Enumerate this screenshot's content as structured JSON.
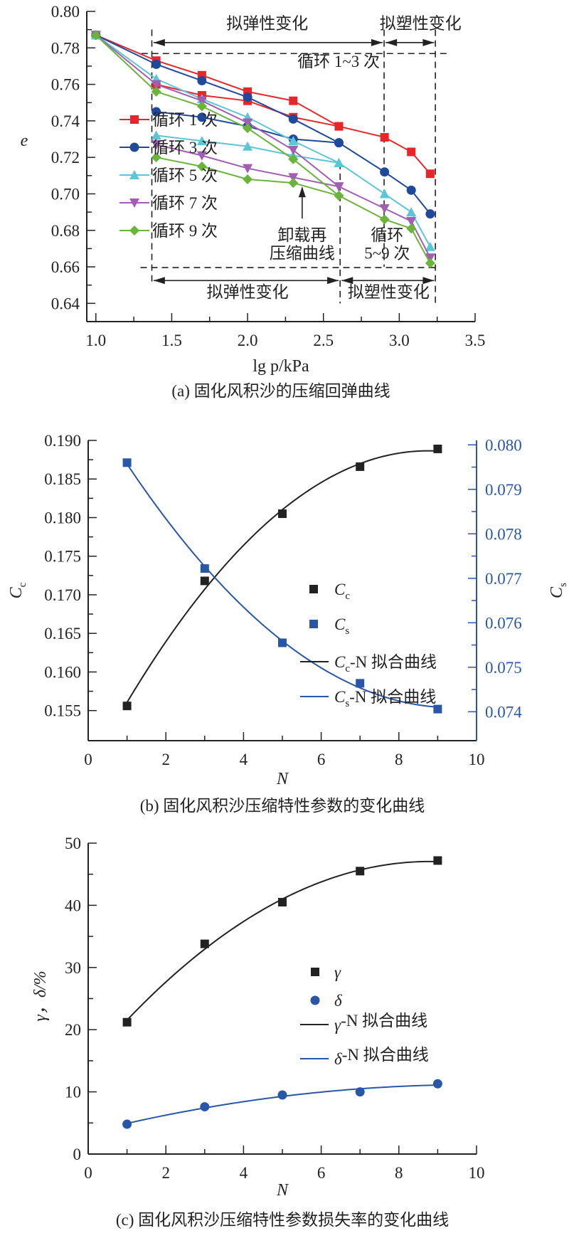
{
  "chart_data": [
    {
      "type": "line",
      "caption": "(a) 固化风积沙的压缩回弹曲线",
      "xlabel": "lg p/kPa",
      "ylabel": "e",
      "xlim": [
        0.94,
        3.5
      ],
      "ylim": [
        0.63,
        0.8
      ],
      "xticks": [
        1.0,
        1.5,
        2.0,
        2.5,
        3.0,
        3.5
      ],
      "xtick_labels": [
        "1.0",
        "1.5",
        "2.0",
        "2.5",
        "3.0",
        "3.5"
      ],
      "yticks": [
        0.64,
        0.66,
        0.68,
        0.7,
        0.72,
        0.74,
        0.76,
        0.78,
        0.8
      ],
      "ytick_labels": [
        "0.64",
        "0.66",
        "0.68",
        "0.70",
        "0.72",
        "0.74",
        "0.76",
        "0.78",
        "0.80"
      ],
      "grid": false,
      "legend": "left-center",
      "series": [
        {
          "name": "循环 1 次",
          "color": "#e8262a",
          "marker": "square",
          "loading": {
            "x": [
              1.0,
              1.398,
              1.699,
              2.0,
              2.301,
              2.602,
              2.903,
              3.079,
              3.204
            ],
            "y": [
              0.787,
              0.773,
              0.765,
              0.756,
              0.751,
              0.737,
              0.731,
              0.723,
              0.711
            ]
          },
          "unload_reload": {
            "x": [
              1.398,
              1.699,
              2.0,
              2.301,
              2.602
            ],
            "y": [
              0.76,
              0.754,
              0.751,
              0.742,
              0.737
            ]
          }
        },
        {
          "name": "循环 3 次",
          "color": "#1f4a9c",
          "marker": "circle",
          "loading": {
            "x": [
              1.0,
              1.398,
              1.699,
              2.0,
              2.301,
              2.602,
              2.903,
              3.079,
              3.204
            ],
            "y": [
              0.787,
              0.771,
              0.762,
              0.753,
              0.741,
              0.728,
              0.712,
              0.702,
              0.689
            ]
          },
          "unload_reload": {
            "x": [
              1.398,
              1.699,
              2.0,
              2.301,
              2.602
            ],
            "y": [
              0.745,
              0.742,
              0.737,
              0.73,
              0.728
            ]
          }
        },
        {
          "name": "循环 5 次",
          "color": "#5cc6d6",
          "marker": "triangle-up",
          "loading": {
            "x": [
              1.0,
              1.398,
              1.699,
              2.0,
              2.301,
              2.602,
              2.903,
              3.079,
              3.204
            ],
            "y": [
              0.787,
              0.763,
              0.752,
              0.742,
              0.729,
              0.717,
              0.7,
              0.69,
              0.671
            ]
          },
          "unload_reload": {
            "x": [
              1.398,
              1.699,
              2.0,
              2.301,
              2.602
            ],
            "y": [
              0.732,
              0.729,
              0.726,
              0.721,
              0.717
            ]
          }
        },
        {
          "name": "循环 7 次",
          "color": "#a15fb3",
          "marker": "triangle-down",
          "loading": {
            "x": [
              1.0,
              1.398,
              1.699,
              2.0,
              2.301,
              2.602,
              2.903,
              3.079,
              3.204
            ],
            "y": [
              0.787,
              0.76,
              0.751,
              0.739,
              0.724,
              0.704,
              0.692,
              0.685,
              0.665
            ]
          },
          "unload_reload": {
            "x": [
              1.398,
              1.699,
              2.0,
              2.301,
              2.602
            ],
            "y": [
              0.727,
              0.721,
              0.714,
              0.709,
              0.704
            ]
          }
        },
        {
          "name": "循环 9 次",
          "color": "#6ab43c",
          "marker": "diamond",
          "loading": {
            "x": [
              1.0,
              1.398,
              1.699,
              2.0,
              2.301,
              2.602,
              2.903,
              3.079,
              3.204
            ],
            "y": [
              0.787,
              0.756,
              0.748,
              0.736,
              0.719,
              0.699,
              0.686,
              0.681,
              0.662
            ]
          },
          "unload_reload": {
            "x": [
              1.398,
              1.699,
              2.0,
              2.301,
              2.602
            ],
            "y": [
              0.72,
              0.715,
              0.708,
              0.706,
              0.699
            ]
          }
        }
      ],
      "annotations": {
        "elastic_top": "拟弹性变化",
        "plastic_top": "拟塑性变化",
        "cycles_1_3": "循环 1~3 次",
        "reload_curve": [
          "卸载再",
          "压缩曲线"
        ],
        "cycles_5_9": [
          "循环",
          "5~9 次"
        ],
        "elastic_bottom": "拟弹性变化",
        "plastic_bottom": "拟塑性变化"
      }
    },
    {
      "type": "scatter",
      "caption": "(b) 固化风积沙压缩特性参数的变化曲线",
      "xlabel": "N",
      "ylabel": {
        "main": "C",
        "sub": "c"
      },
      "ylabel_right": {
        "main": "C",
        "sub": "s"
      },
      "xlim": [
        0,
        10
      ],
      "ylim": [
        0.1511,
        0.19
      ],
      "ylim_right": [
        0.07335,
        0.0801
      ],
      "xticks": [
        0,
        2,
        4,
        6,
        8,
        10
      ],
      "xtick_labels": [
        "0",
        "2",
        "4",
        "6",
        "8",
        "10"
      ],
      "yticks": [
        0.155,
        0.16,
        0.165,
        0.17,
        0.175,
        0.18,
        0.185,
        0.19
      ],
      "ytick_labels": [
        "0.155",
        "0.160",
        "0.165",
        "0.170",
        "0.175",
        "0.180",
        "0.185",
        "0.190"
      ],
      "yticks_right": [
        0.074,
        0.075,
        0.076,
        0.077,
        0.078,
        0.079,
        0.08
      ],
      "ytick_labels_right": [
        "0.074",
        "0.075",
        "0.076",
        "0.077",
        "0.078",
        "0.079",
        "0.080"
      ],
      "right_axis_color": "#2a56a8",
      "grid": false,
      "legend": "center-right",
      "x": [
        1,
        3,
        5,
        7,
        9
      ],
      "series": [
        {
          "legend": {
            "main": "C",
            "sub": "c",
            "suffix": ""
          },
          "color": "#222222",
          "marker": "square",
          "axis": "left",
          "values": [
            0.1556,
            0.1718,
            0.1805,
            0.1866,
            0.1889
          ]
        },
        {
          "legend": {
            "main": "C",
            "sub": "s",
            "suffix": ""
          },
          "color": "#2a56a8",
          "marker": "square",
          "axis": "right",
          "values": [
            0.0796,
            0.07722,
            0.07555,
            0.07464,
            0.07406
          ]
        }
      ],
      "fits": [
        {
          "legend": {
            "main": "C",
            "sub": "c",
            "suffix": "-N 拟合曲线"
          },
          "color": "#222222",
          "of": 0
        },
        {
          "legend": {
            "main": "C",
            "sub": "s",
            "suffix": "-N 拟合曲线"
          },
          "color": "#2a56a8",
          "of": 1
        }
      ]
    },
    {
      "type": "scatter",
      "caption": "(c) 固化风积沙压缩特性参数损失率的变化曲线",
      "xlabel": "N",
      "ylabel": "γ，δ/%",
      "xlim": [
        0,
        10
      ],
      "ylim": [
        0,
        50
      ],
      "xticks": [
        0,
        2,
        4,
        6,
        8,
        10
      ],
      "xtick_labels": [
        "0",
        "2",
        "4",
        "6",
        "8",
        "10"
      ],
      "yticks": [
        0,
        10,
        20,
        30,
        40,
        50
      ],
      "ytick_labels": [
        "0",
        "10",
        "20",
        "30",
        "40",
        "50"
      ],
      "grid": false,
      "legend": "center-right",
      "x": [
        1,
        3,
        5,
        7,
        9
      ],
      "series": [
        {
          "legend": {
            "main": "γ",
            "sub": "",
            "suffix": ""
          },
          "color": "#222222",
          "marker": "square",
          "values": [
            21.2,
            33.8,
            40.5,
            45.5,
            47.2
          ]
        },
        {
          "legend": {
            "main": "δ",
            "sub": "",
            "suffix": ""
          },
          "color": "#2a56a8",
          "marker": "circle",
          "values": [
            4.8,
            7.6,
            9.5,
            10.0,
            11.3
          ]
        }
      ],
      "fits": [
        {
          "legend": {
            "main": "γ",
            "sub": "",
            "suffix": "-N 拟合曲线"
          },
          "color": "#222222",
          "of": 0
        },
        {
          "legend": {
            "main": "δ",
            "sub": "",
            "suffix": "-N 拟合曲线"
          },
          "color": "#2a56a8",
          "of": 1
        }
      ]
    }
  ]
}
